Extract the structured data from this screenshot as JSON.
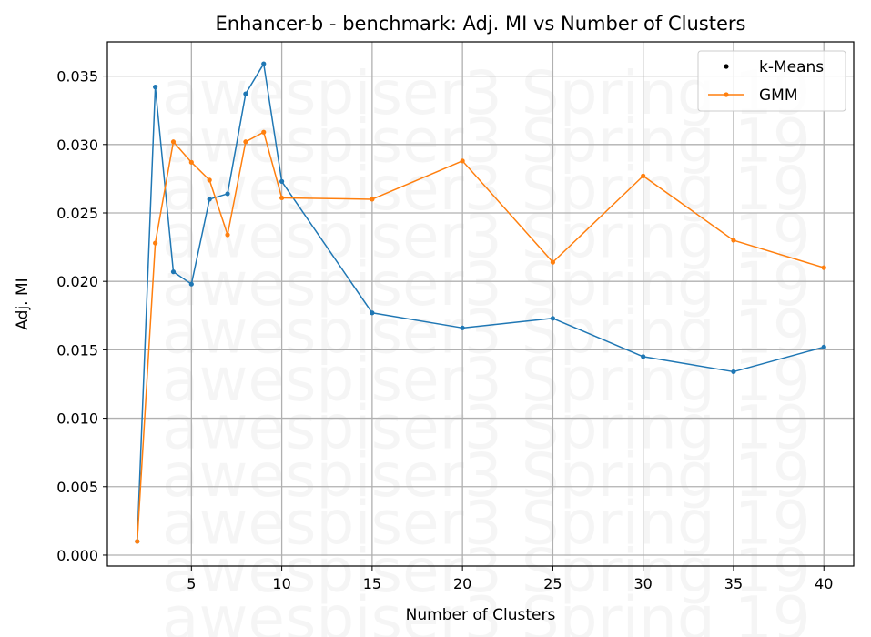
{
  "chart_data": {
    "type": "line",
    "title": "Enhancer-b - benchmark: Adj. MI vs Number of Clusters",
    "xlabel": "Number of Clusters",
    "ylabel": "Adj. MI",
    "x": [
      2,
      3,
      4,
      5,
      6,
      7,
      8,
      9,
      10,
      15,
      20,
      25,
      30,
      35,
      40
    ],
    "xlim": [
      0.35,
      41.65
    ],
    "ylim": [
      -0.0008,
      0.0375
    ],
    "xticks": [
      5,
      10,
      15,
      20,
      25,
      30,
      35,
      40
    ],
    "xtick_labels": [
      "5",
      "10",
      "15",
      "20",
      "25",
      "30",
      "35",
      "40"
    ],
    "yticks": [
      0.0,
      0.005,
      0.01,
      0.015,
      0.02,
      0.025,
      0.03,
      0.035
    ],
    "ytick_labels": [
      "0.000",
      "0.005",
      "0.010",
      "0.015",
      "0.020",
      "0.025",
      "0.030",
      "0.035"
    ],
    "grid": true,
    "legend_position": "top-right",
    "series": [
      {
        "name": "k-Means",
        "color": "#1f77b4",
        "values": [
          0.001,
          0.0342,
          0.0207,
          0.0198,
          0.026,
          0.0264,
          0.0337,
          0.0359,
          0.0273,
          0.0177,
          0.0166,
          0.0173,
          0.0145,
          0.0134,
          0.0152
        ]
      },
      {
        "name": "GMM",
        "color": "#ff7f0e",
        "values": [
          0.001,
          0.0228,
          0.0302,
          0.0287,
          0.0274,
          0.0234,
          0.0302,
          0.0309,
          0.0261,
          0.026,
          0.0288,
          0.0214,
          0.0277,
          0.023,
          0.021
        ]
      }
    ],
    "watermark_lines": [
      "awespiser3 Spring 19",
      "awespiser3 Spring 19",
      "awespiser3 Spring 19",
      "awespiser3 Spring 19",
      "awespiser3 Spring 19",
      "awespiser3 Spring 19",
      "awespiser3 Spring 19",
      "awespiser3 Spring 19",
      "awespiser3 Spring 19",
      "awespiser3 Spring 19",
      "awespiser3 Spring 19",
      "awespiser3 Spring 19"
    ]
  }
}
